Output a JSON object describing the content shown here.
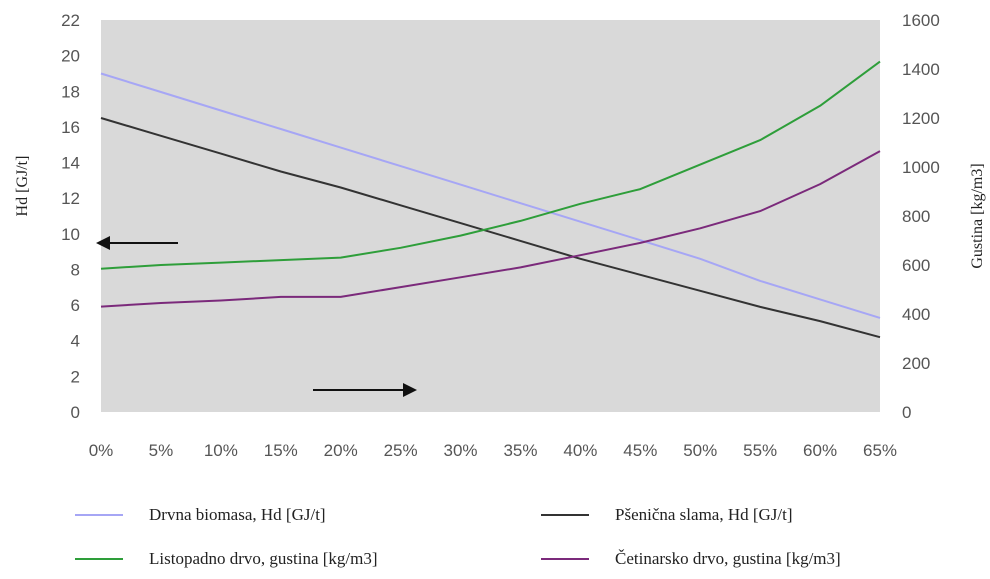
{
  "chart_data": {
    "type": "line",
    "x": [
      "0%",
      "5%",
      "10%",
      "15%",
      "20%",
      "25%",
      "30%",
      "35%",
      "40%",
      "45%",
      "50%",
      "55%",
      "60%",
      "65%"
    ],
    "xlabel": "",
    "y_left_label": "Hd [GJ/t]",
    "y_right_label": "Gustina [kg/m3]",
    "y_left_range": [
      0,
      22
    ],
    "y_left_ticks": [
      0,
      2,
      4,
      6,
      8,
      10,
      12,
      14,
      16,
      18,
      20,
      22
    ],
    "y_right_range": [
      0,
      1600
    ],
    "y_right_ticks": [
      0,
      200,
      400,
      600,
      800,
      1000,
      1200,
      1400,
      1600
    ],
    "grid": false,
    "plot_background": "#d9d9d9",
    "legend_position": "bottom",
    "series": [
      {
        "name": "Drvna biomasa, Hd [GJ/t]",
        "axis": "left",
        "color": "#a6a6f5",
        "values": [
          19.0,
          17.96,
          16.92,
          15.88,
          14.84,
          13.8,
          12.76,
          11.72,
          10.68,
          9.64,
          8.6,
          7.36,
          6.32,
          5.28
        ]
      },
      {
        "name": "Pšenična slama, Hd [GJ/t]",
        "axis": "left",
        "color": "#333333",
        "values": [
          16.5,
          15.5,
          14.5,
          13.5,
          12.6,
          11.6,
          10.6,
          9.6,
          8.6,
          7.7,
          6.8,
          5.9,
          5.1,
          4.2
        ]
      },
      {
        "name": "Listopadno drvo, gustina [kg/m3]",
        "axis": "right",
        "color": "#2e9e3a",
        "values": [
          585,
          600,
          610,
          620,
          630,
          670,
          720,
          780,
          850,
          910,
          1010,
          1110,
          1250,
          1430
        ]
      },
      {
        "name": "Četinarsko drvo, gustina [kg/m3]",
        "axis": "right",
        "color": "#7b2a7b",
        "values": [
          430,
          445,
          455,
          470,
          470,
          510,
          550,
          590,
          640,
          690,
          750,
          820,
          930,
          1065
        ]
      }
    ],
    "annotations": [
      {
        "type": "arrow",
        "direction": "left",
        "meaning": "series belong to left axis"
      },
      {
        "type": "arrow",
        "direction": "right",
        "meaning": "series belong to right axis"
      }
    ]
  }
}
